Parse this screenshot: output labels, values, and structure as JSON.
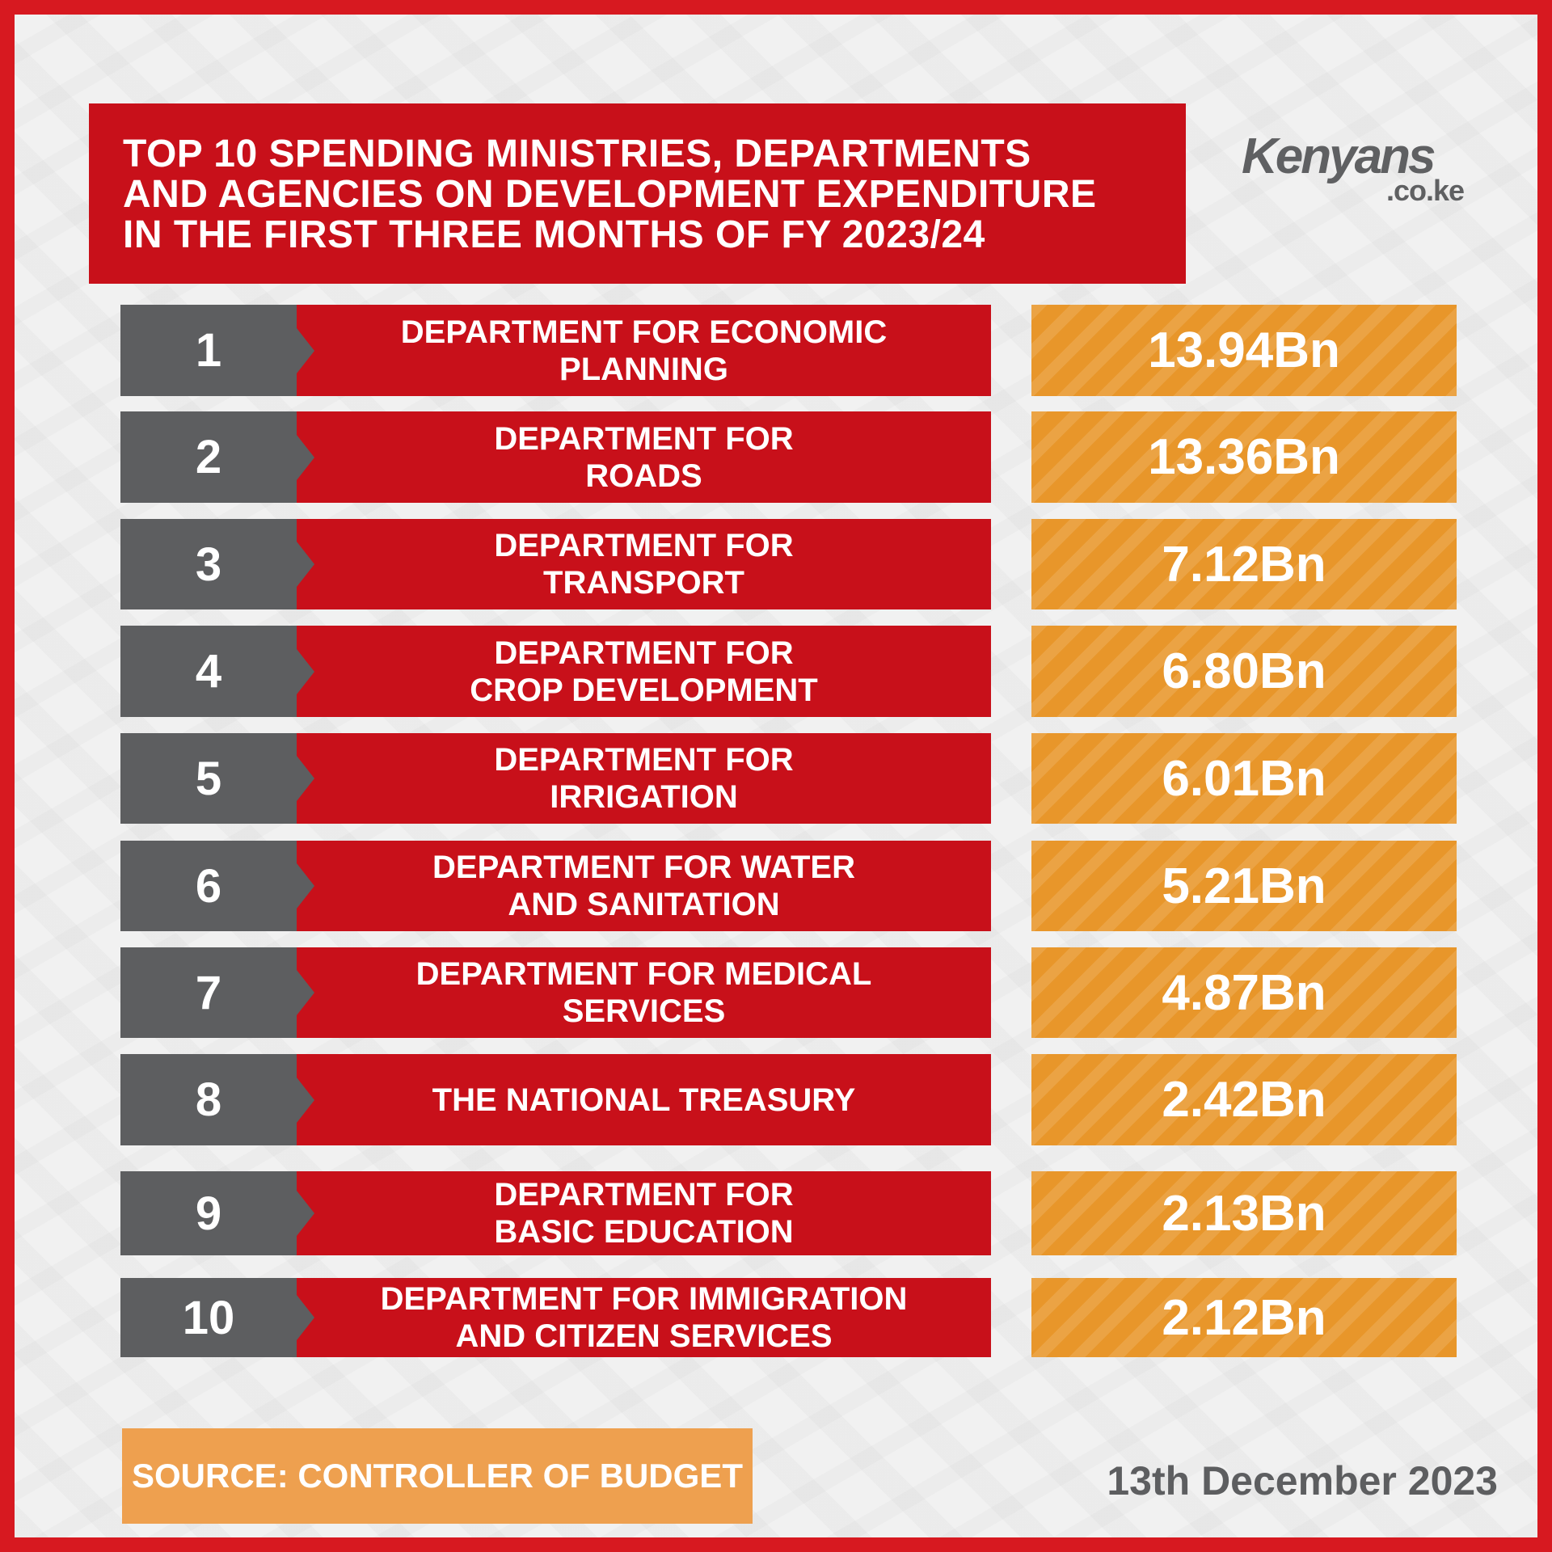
{
  "title": {
    "lines": [
      "TOP 10 SPENDING MINISTRIES, DEPARTMENTS",
      "AND AGENCIES ON DEVELOPMENT EXPENDITURE",
      "IN THE FIRST THREE MONTHS OF FY 2023/24"
    ]
  },
  "logo": {
    "main": "Kenyans",
    "sub": ".co.ke"
  },
  "colors": {
    "border": "#d71920",
    "red": "#c8101a",
    "gray": "#5d5e60",
    "orange": "#e8962a",
    "source_bg": "#eea04f"
  },
  "chart_data": {
    "type": "table",
    "columns": [
      "rank",
      "entity",
      "development_expenditure"
    ],
    "rows": [
      {
        "rank": "1",
        "name_lines": [
          "DEPARTMENT FOR ECONOMIC",
          "PLANNING"
        ],
        "value": "13.94Bn"
      },
      {
        "rank": "2",
        "name_lines": [
          "DEPARTMENT FOR",
          "ROADS"
        ],
        "value": "13.36Bn"
      },
      {
        "rank": "3",
        "name_lines": [
          "DEPARTMENT FOR",
          "TRANSPORT"
        ],
        "value": "7.12Bn"
      },
      {
        "rank": "4",
        "name_lines": [
          "DEPARTMENT FOR",
          "CROP DEVELOPMENT"
        ],
        "value": "6.80Bn"
      },
      {
        "rank": "5",
        "name_lines": [
          "DEPARTMENT FOR",
          "IRRIGATION"
        ],
        "value": "6.01Bn"
      },
      {
        "rank": "6",
        "name_lines": [
          "DEPARTMENT FOR WATER",
          "AND SANITATION"
        ],
        "value": "5.21Bn"
      },
      {
        "rank": "7",
        "name_lines": [
          "DEPARTMENT FOR MEDICAL",
          "SERVICES"
        ],
        "value": "4.87Bn"
      },
      {
        "rank": "8",
        "name_lines": [
          "THE NATIONAL TREASURY"
        ],
        "value": "2.42Bn"
      },
      {
        "rank": "9",
        "name_lines": [
          "DEPARTMENT FOR",
          "BASIC EDUCATION"
        ],
        "value": "2.13Bn"
      },
      {
        "rank": "10",
        "name_lines": [
          "DEPARTMENT FOR IMMIGRATION",
          "AND CITIZEN SERVICES"
        ],
        "value": "2.12Bn"
      }
    ]
  },
  "source": "SOURCE: CONTROLLER OF BUDGET",
  "date": "13th December 2023"
}
